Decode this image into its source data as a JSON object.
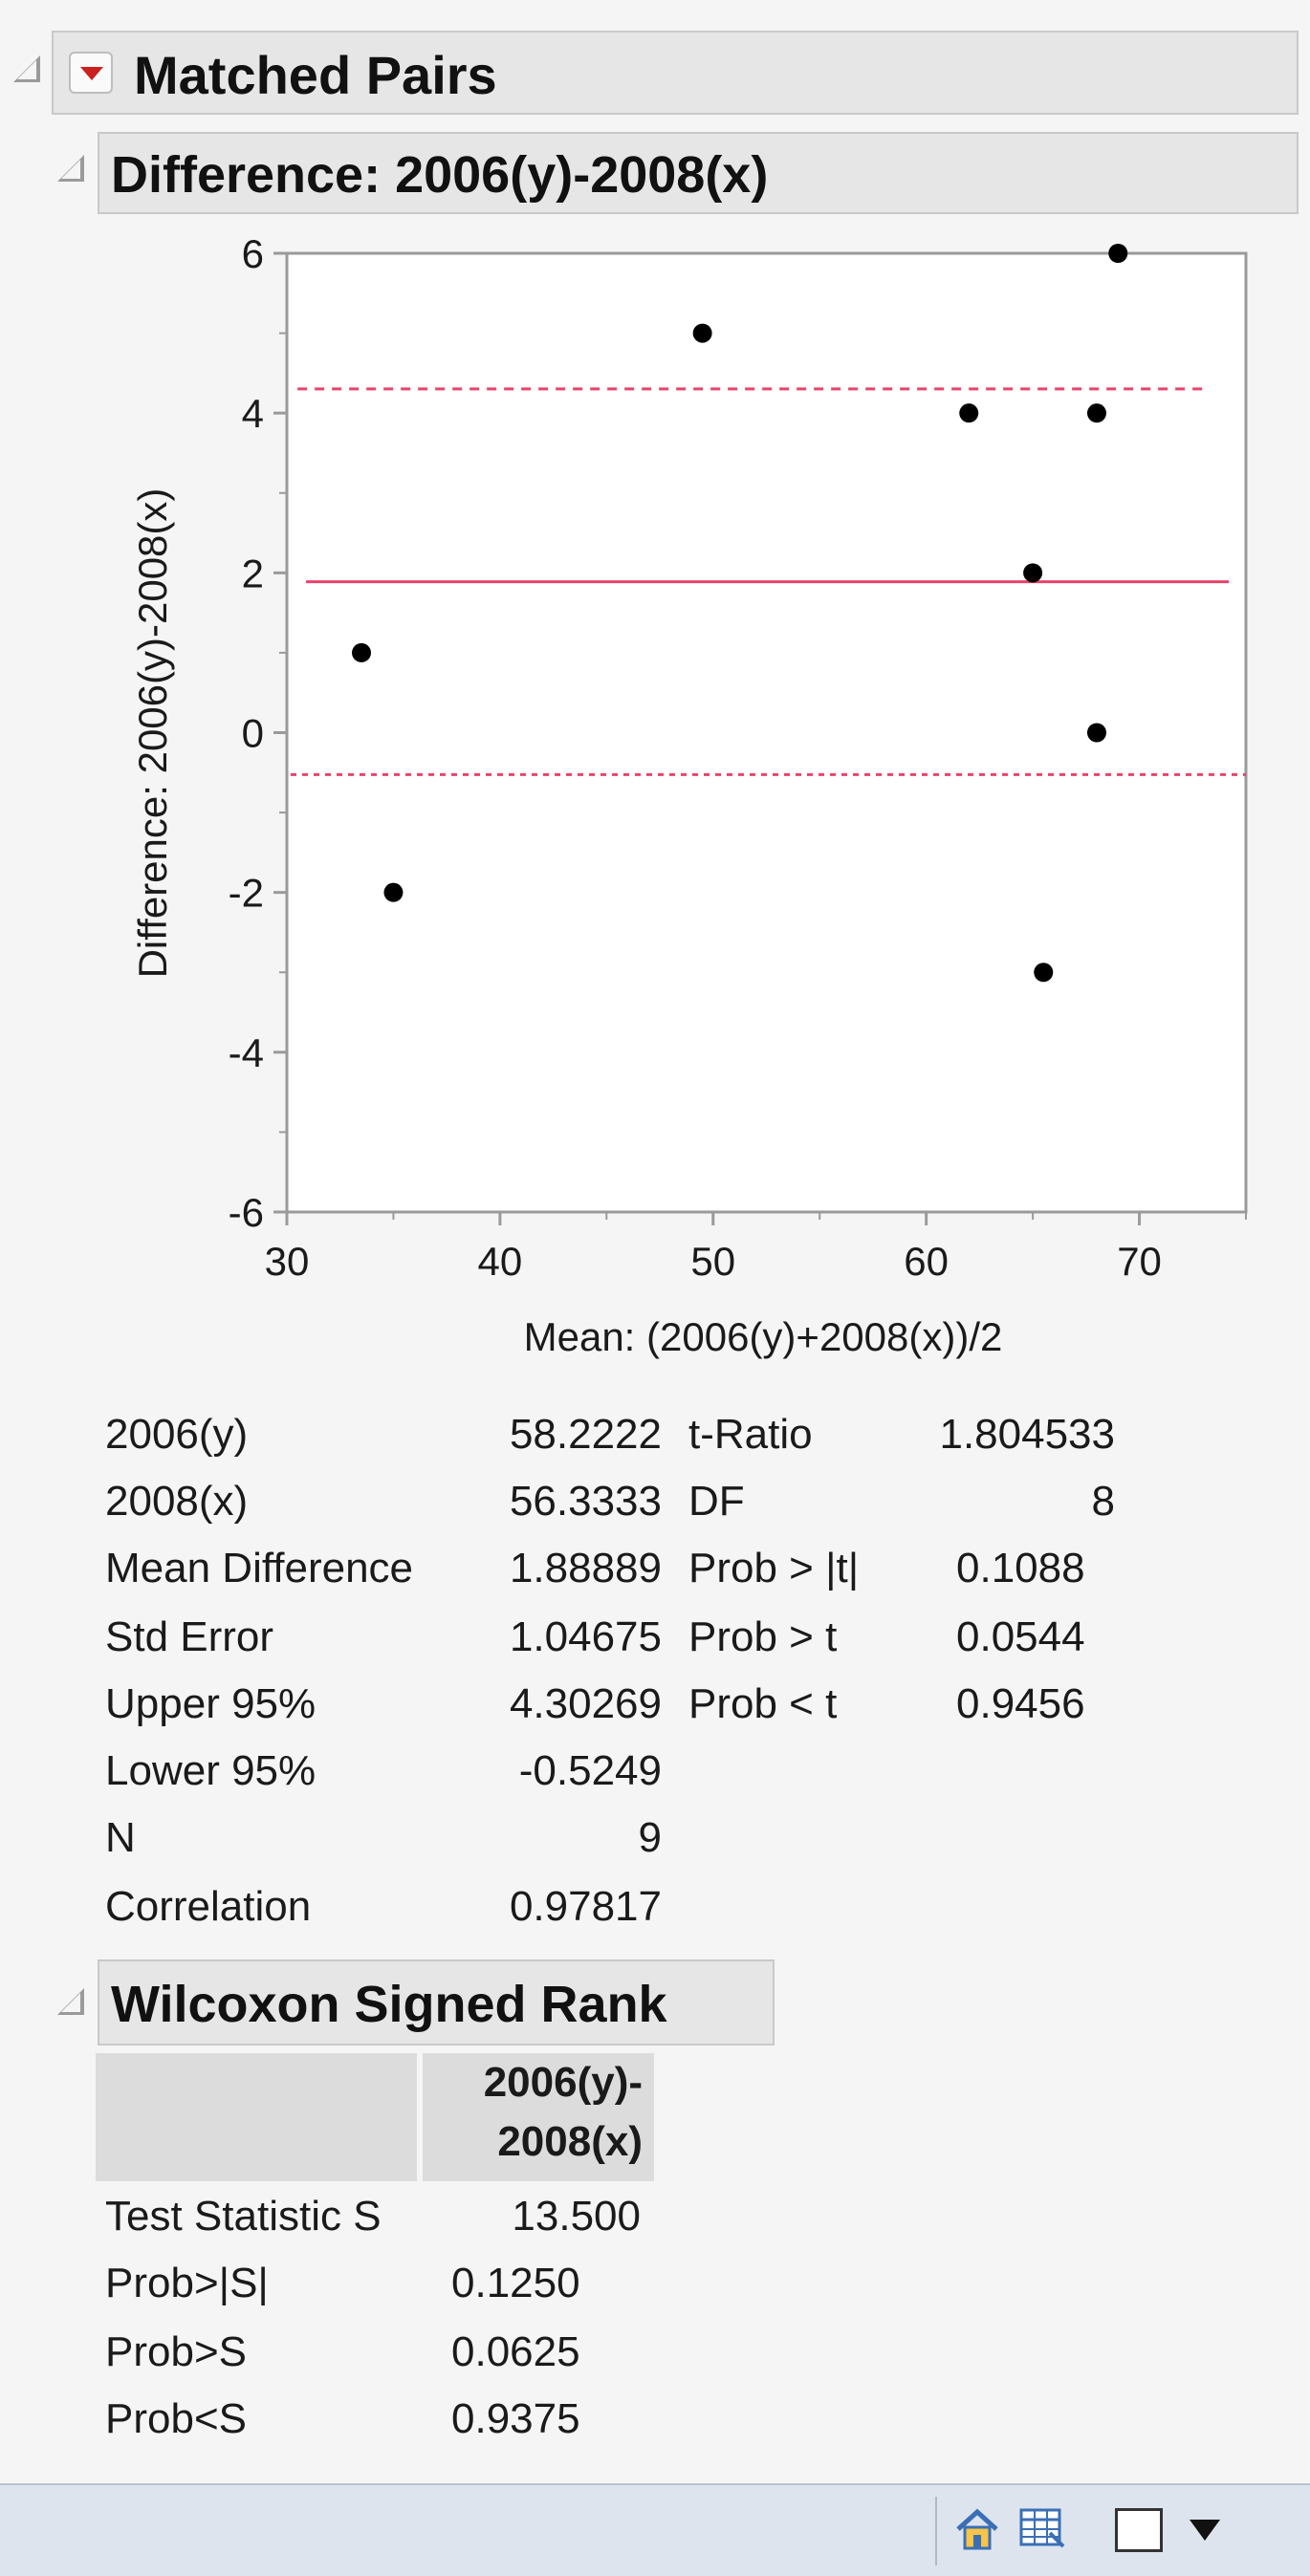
{
  "report": {
    "title": "Matched Pairs",
    "plot_header": "Difference: 2006(y)-2008(x)",
    "wilcoxon_header": "Wilcoxon Signed Rank"
  },
  "chart_data": {
    "type": "scatter",
    "xlabel": "Mean: (2006(y)+2008(x))/2",
    "ylabel": "Difference: 2006(y)-2008(x)",
    "xlim": [
      30,
      75
    ],
    "ylim": [
      -6,
      6
    ],
    "x_ticks": [
      30,
      40,
      50,
      60,
      70
    ],
    "y_ticks": [
      6,
      4,
      2,
      0,
      -2,
      -4,
      -6
    ],
    "points": [
      {
        "x": 33.5,
        "y": 1
      },
      {
        "x": 35.0,
        "y": -2
      },
      {
        "x": 49.5,
        "y": 5
      },
      {
        "x": 62.0,
        "y": 4
      },
      {
        "x": 65.0,
        "y": 2
      },
      {
        "x": 65.5,
        "y": -3
      },
      {
        "x": 68.0,
        "y": 4
      },
      {
        "x": 68.0,
        "y": 0
      },
      {
        "x": 69.0,
        "y": 6
      }
    ],
    "mean_difference_line": 1.88889,
    "upper_95_line": 4.30269,
    "lower_95_line": -0.5249,
    "colors": {
      "points": "#000000",
      "mean_line": "#e8436b",
      "ci_lines": "#e8436b",
      "frame": "#9a9a9a"
    }
  },
  "stats_left": [
    {
      "label": "2006(y)",
      "value": "58.2222"
    },
    {
      "label": "2008(x)",
      "value": "56.3333"
    },
    {
      "label": "Mean Difference",
      "value": "1.88889"
    },
    {
      "label": "Std Error",
      "value": "1.04675"
    },
    {
      "label": "Upper 95%",
      "value": "4.30269"
    },
    {
      "label": "Lower 95%",
      "value": "-0.5249"
    },
    {
      "label": "N",
      "value": "9"
    },
    {
      "label": "Correlation",
      "value": "0.97817"
    }
  ],
  "stats_right": [
    {
      "label": "t-Ratio",
      "value": "1.804533"
    },
    {
      "label": "DF",
      "value": "8"
    },
    {
      "label": "Prob > |t|",
      "value": "0.1088"
    },
    {
      "label": "Prob > t",
      "value": "0.0544"
    },
    {
      "label": "Prob < t",
      "value": "0.9456"
    }
  ],
  "wilcoxon": {
    "column_header_line1": "2006(y)-",
    "column_header_line2": "2008(x)",
    "rows": [
      {
        "label": "Test Statistic S",
        "value": "13.500"
      },
      {
        "label": "Prob>|S|",
        "value": "0.1250"
      },
      {
        "label": "Prob>S",
        "value": "0.0625"
      },
      {
        "label": "Prob<S",
        "value": "0.9375"
      }
    ]
  }
}
